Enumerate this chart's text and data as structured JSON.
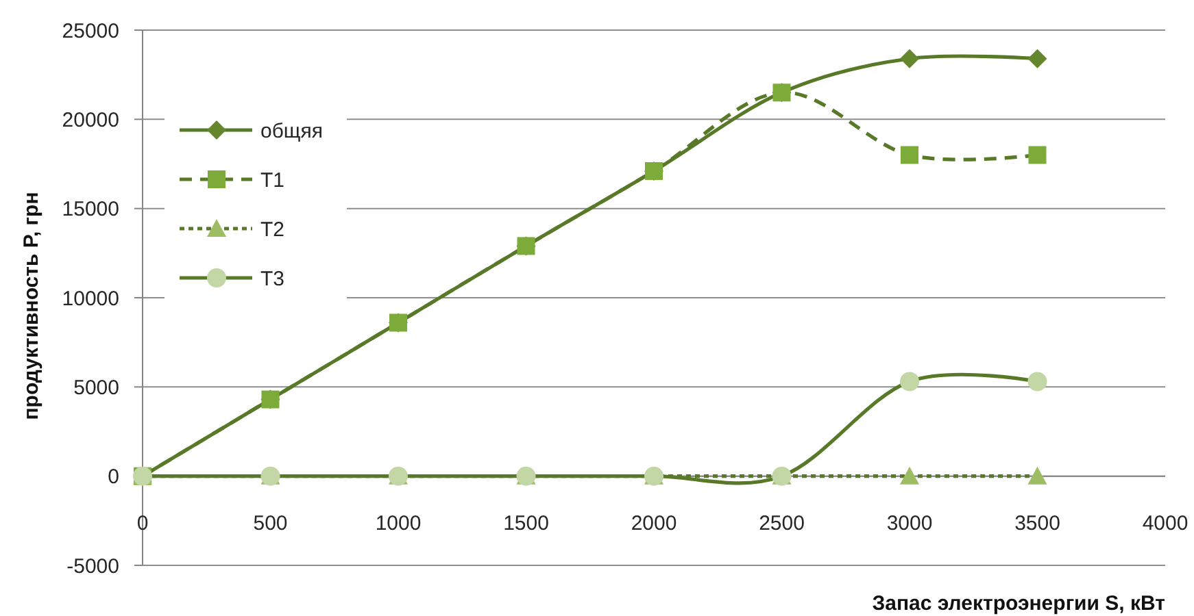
{
  "chart_data": {
    "type": "line",
    "xlabel": "Запас электроэнергии S, кВт",
    "ylabel": "продуктивность P, грн",
    "x": [
      0,
      500,
      1000,
      1500,
      2000,
      2500,
      3000,
      3500
    ],
    "xlim": [
      0,
      4000
    ],
    "xticks": [
      0,
      500,
      1000,
      1500,
      2000,
      2500,
      3000,
      3500,
      4000
    ],
    "ylim": [
      -5000,
      25000
    ],
    "yticks": [
      -5000,
      0,
      5000,
      10000,
      15000,
      20000,
      25000
    ],
    "grid": "y",
    "legend": "top left",
    "series": [
      {
        "name": "общяя",
        "color": "#587a28",
        "colors": [
          "#64862c",
          "#64862c",
          "#64862c",
          "#64862c",
          "#64862c",
          "#64862c",
          "#64862c",
          "#64862c"
        ],
        "marker": "diamond",
        "line_style": "solid",
        "values": [
          0,
          4300,
          8600,
          12900,
          17100,
          21500,
          23400,
          23400
        ]
      },
      {
        "name": "T1",
        "color": "#587a28",
        "colors": [
          "#7cab3a",
          "#7cab3a",
          "#7cab3a",
          "#7cab3a",
          "#7cab3a",
          "#7cab3a",
          "#7cab3a",
          "#7cab3a"
        ],
        "marker": "square",
        "line_style": "dashed",
        "values": [
          0,
          4300,
          8600,
          12900,
          17100,
          21500,
          18000,
          18000
        ]
      },
      {
        "name": "T2",
        "color": "#587a28",
        "colors": [
          "#9dbd62",
          "#9dbd62",
          "#9dbd62",
          "#9dbd62",
          "#9dbd62",
          "#9dbd62",
          "#9dbd62",
          "#9dbd62"
        ],
        "marker": "triangle",
        "line_style": "dotted",
        "values": [
          0,
          0,
          0,
          0,
          0,
          0,
          0,
          0
        ]
      },
      {
        "name": "T3",
        "color": "#587a28",
        "colors": [
          "#c3d6a6",
          "#c3d6a6",
          "#c3d6a6",
          "#c3d6a6",
          "#c3d6a6",
          "#c3d6a6",
          "#c3d6a6",
          "#c3d6a6"
        ],
        "marker": "circle",
        "line_style": "solid",
        "values": [
          0,
          0,
          0,
          0,
          0,
          0,
          5300,
          5300
        ]
      }
    ]
  }
}
